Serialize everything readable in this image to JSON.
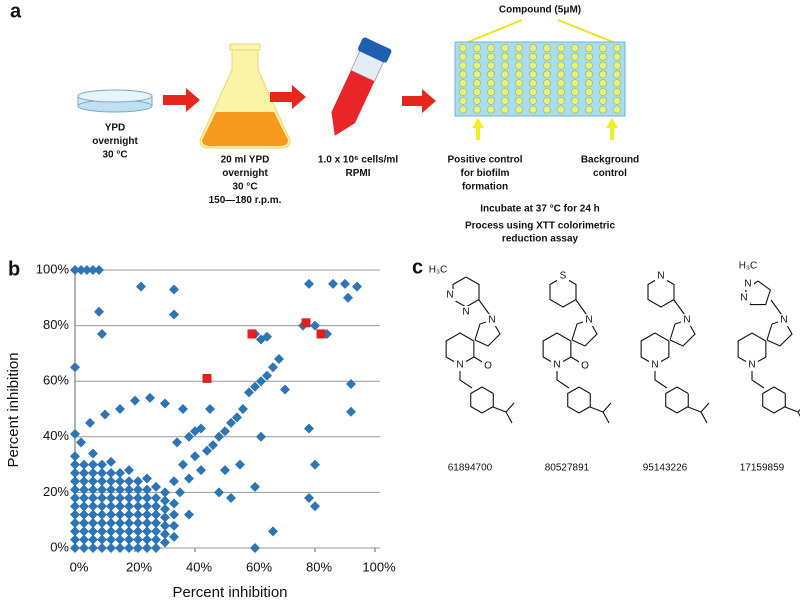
{
  "panel_a": {
    "label": "a",
    "compound": "Compound (5μM)",
    "steps": [
      {
        "lines": [
          "YPD",
          "overnight",
          "30 °C"
        ]
      },
      {
        "lines": [
          "20 ml YPD",
          "overnight",
          "30 °C",
          "150—180 r.p.m."
        ]
      },
      {
        "lines": [
          "1.0 x 10⁶ cells/ml",
          "RPMI"
        ]
      }
    ],
    "controls": [
      {
        "lines": [
          "Positive control",
          "for biofilm",
          "formation"
        ]
      },
      {
        "lines": [
          "Background",
          "control"
        ]
      }
    ],
    "incubate": "Incubate at 37 °C for 24 h",
    "process": [
      "Process using XTT colorimetric",
      "reduction assay"
    ]
  },
  "chart_data": {
    "type": "scatter",
    "panel_label": "b",
    "xlabel": "Percent inhibition",
    "ylabel": "Percent inhibition",
    "xlim": [
      0,
      100
    ],
    "ylim": [
      0,
      100
    ],
    "xticks": [
      {
        "value": 0,
        "label": "0%"
      },
      {
        "value": 20,
        "label": "20%"
      },
      {
        "value": 40,
        "label": "40%"
      },
      {
        "value": 60,
        "label": "60%"
      },
      {
        "value": 80,
        "label": "80%"
      },
      {
        "value": 100,
        "label": "100%"
      }
    ],
    "yticks": [
      {
        "value": 0,
        "label": "0%"
      },
      {
        "value": 20,
        "label": "20%"
      },
      {
        "value": 40,
        "label": "40%"
      },
      {
        "value": 60,
        "label": "60%"
      },
      {
        "value": 80,
        "label": "80%"
      },
      {
        "value": 100,
        "label": "100%"
      }
    ],
    "grid": true,
    "series": [
      {
        "color": "#2e75b6",
        "marker": "diamond",
        "x": [
          0,
          0,
          0,
          0,
          0,
          0,
          0,
          0,
          0,
          0,
          0,
          0,
          3,
          3,
          3,
          3,
          3,
          3,
          3,
          3,
          3,
          3,
          3,
          6,
          6,
          6,
          6,
          6,
          6,
          6,
          6,
          6,
          6,
          6,
          6,
          9,
          9,
          9,
          9,
          9,
          9,
          9,
          9,
          9,
          9,
          9,
          12,
          12,
          12,
          12,
          12,
          12,
          12,
          12,
          12,
          12,
          12,
          15,
          15,
          15,
          15,
          15,
          15,
          15,
          15,
          15,
          15,
          18,
          18,
          18,
          18,
          18,
          18,
          18,
          18,
          18,
          18,
          21,
          21,
          21,
          21,
          21,
          21,
          21,
          21,
          21,
          24,
          24,
          24,
          24,
          24,
          24,
          24,
          24,
          24,
          27,
          27,
          27,
          27,
          27,
          27,
          27,
          27,
          30,
          30,
          30,
          30,
          30,
          30,
          30,
          33,
          33,
          33,
          33,
          33
        ],
        "values": [
          0,
          3,
          6,
          9,
          12,
          15,
          18,
          21,
          24,
          27,
          30,
          33,
          0,
          3,
          6,
          9,
          12,
          15,
          18,
          21,
          24,
          27,
          30,
          0,
          3,
          6,
          9,
          12,
          15,
          18,
          21,
          24,
          27,
          30,
          34,
          0,
          3,
          6,
          9,
          12,
          15,
          18,
          21,
          24,
          27,
          30,
          0,
          3,
          6,
          9,
          12,
          15,
          18,
          21,
          24,
          27,
          31,
          0,
          3,
          6,
          9,
          12,
          15,
          18,
          21,
          24,
          27,
          0,
          3,
          6,
          9,
          12,
          15,
          18,
          21,
          24,
          28,
          0,
          3,
          6,
          9,
          12,
          15,
          18,
          21,
          24,
          0,
          3,
          6,
          9,
          12,
          15,
          18,
          21,
          25,
          0,
          3,
          6,
          9,
          12,
          15,
          18,
          22,
          2,
          5,
          8,
          11,
          14,
          17,
          20,
          4,
          8,
          12,
          16,
          24
        ]
      },
      {
        "color": "#2e75b6",
        "marker": "diamond",
        "x": [
          0,
          2,
          4,
          6,
          8,
          0,
          8,
          9,
          22,
          33,
          33,
          60,
          62,
          64,
          66,
          76,
          78,
          80,
          84,
          86,
          90,
          91,
          92,
          92,
          94,
          78,
          80,
          78,
          80,
          60,
          62,
          66,
          60,
          58,
          60,
          62,
          64,
          68,
          70,
          56,
          54,
          52,
          50,
          48,
          46,
          44,
          42,
          40,
          38,
          36,
          30,
          25,
          20,
          15,
          10,
          5,
          0,
          2,
          45,
          50,
          55,
          48,
          52,
          36,
          38,
          40,
          42,
          35,
          38,
          34
        ],
        "values": [
          100,
          100,
          100,
          100,
          100,
          65,
          85,
          77,
          94,
          93,
          84,
          77,
          75,
          76,
          65,
          80,
          95,
          80,
          77,
          95,
          95,
          90,
          59,
          49,
          94,
          43,
          30,
          18,
          15,
          22,
          40,
          6,
          0,
          56,
          58,
          60,
          62,
          68,
          57,
          50,
          47,
          45,
          42,
          40,
          37,
          35,
          43,
          42,
          40,
          50,
          52,
          54,
          53,
          50,
          48,
          45,
          41,
          38,
          50,
          28,
          30,
          20,
          18,
          30,
          25,
          33,
          28,
          20,
          12,
          38
        ]
      },
      {
        "color": "#e02020",
        "marker": "square",
        "x": [
          44,
          59,
          77,
          82
        ],
        "values": [
          61,
          77,
          81,
          77
        ]
      }
    ]
  },
  "panel_c": {
    "label": "c",
    "compounds": [
      {
        "id": "61894700",
        "atoms": [
          "H₃C",
          "N",
          "N",
          "N",
          "O",
          "N"
        ]
      },
      {
        "id": "80527891",
        "atoms": [
          "S",
          "N",
          "O",
          "N"
        ]
      },
      {
        "id": "95143226",
        "atoms": [
          "N",
          "N",
          "N"
        ]
      },
      {
        "id": "17159859",
        "atoms": [
          "H₃C",
          "N",
          "N",
          "N",
          "N"
        ]
      }
    ]
  }
}
